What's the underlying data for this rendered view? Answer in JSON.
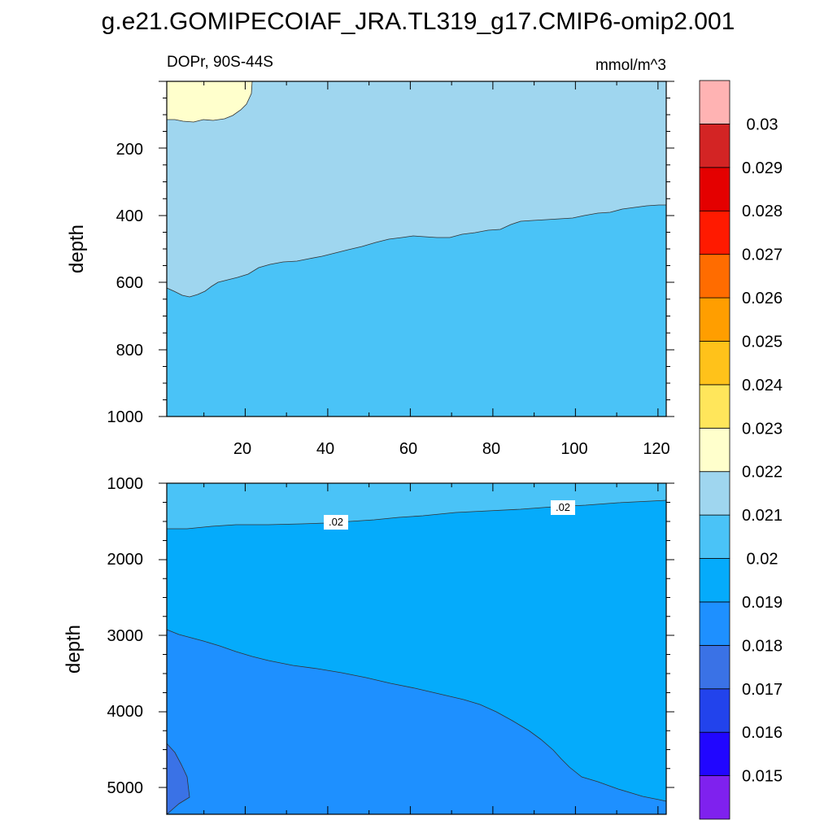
{
  "chart_data": {
    "type": "contour",
    "title": "g.e21.GOMIPECOIAF_JRA.TL319_g17.CMIP6-omip2.001",
    "left_subtitle": "DOPr, 90S-44S",
    "right_subtitle": "mmol/m^3",
    "x_ticks": [
      "20",
      "40",
      "60",
      "80",
      "100",
      "120"
    ],
    "x_range": [
      1,
      122
    ],
    "panels": [
      {
        "name": "upper",
        "ylabel": "depth",
        "y_range": [
          0,
          1000
        ],
        "y_ticks": [
          "200",
          "400",
          "600",
          "800",
          "1000"
        ],
        "regions": [
          {
            "level": "0.021-0.022",
            "color": "#9fd6ef"
          },
          {
            "level": "0.022-0.023",
            "color": "#ffffcc"
          },
          {
            "level": "0.020-0.021",
            "color": "#4ac3f7"
          }
        ],
        "contour_labels": []
      },
      {
        "name": "lower",
        "ylabel": "depth",
        "y_range": [
          1000,
          5350
        ],
        "y_ticks": [
          "1000",
          "2000",
          "3000",
          "4000",
          "5000"
        ],
        "regions": [
          {
            "level": "0.020-0.021",
            "color": "#4ac3f7"
          },
          {
            "level": "0.019-0.020",
            "color": "#05abfb"
          },
          {
            "level": "0.018-0.019",
            "color": "#1e90ff"
          },
          {
            "level": "0.017-0.018",
            "color": "#3a72e6"
          }
        ],
        "contour_labels": [
          ".02",
          ".02"
        ]
      }
    ],
    "colorbar": {
      "colors": [
        "#7f21ee",
        "#2106ff",
        "#2243ec",
        "#3a72e6",
        "#1e90ff",
        "#05abfb",
        "#4ac3f7",
        "#9fd6ef",
        "#ffffcc",
        "#ffe65b",
        "#ffc21a",
        "#ff9e00",
        "#ff6c00",
        "#ff1a00",
        "#e40000",
        "#d32424",
        "#ffb3b3"
      ],
      "labels": [
        "0.015",
        "0.016",
        "0.017",
        "0.018",
        "0.019",
        "0.02",
        "0.021",
        "0.022",
        "0.023",
        "0.024",
        "0.025",
        "0.026",
        "0.027",
        "0.028",
        "0.029",
        "0.03"
      ]
    }
  }
}
